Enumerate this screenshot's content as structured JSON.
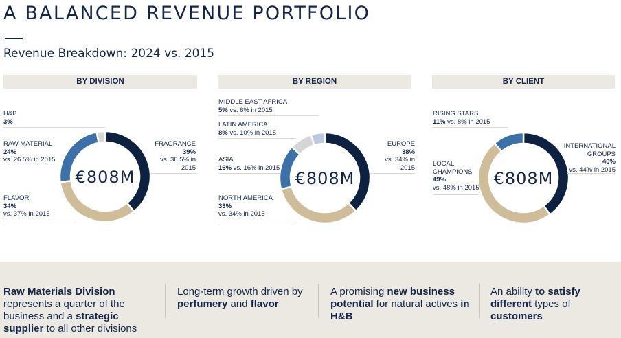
{
  "page": {
    "title": "A BALANCED REVENUE PORTFOLIO",
    "subtitle": "Revenue Breakdown: 2024 vs. 2015"
  },
  "colors": {
    "navy": "#0d2240",
    "steel_blue": "#3b70a8",
    "tan": "#cfbc98",
    "light_gray": "#d6d6d6",
    "pale_blue": "#b9c9e0",
    "band_bg": "#ece9e3"
  },
  "chart_data": [
    {
      "type": "pie",
      "title": "BY DIVISION",
      "center_label": "€808M",
      "slices": [
        {
          "name": "FRAGRANCE",
          "value": 39,
          "value_label": "39%",
          "note": "vs. 36.5% in 2015",
          "color": "#0d2240"
        },
        {
          "name": "FLAVOR",
          "value": 34,
          "value_label": "34%",
          "note": "vs. 37% in 2015",
          "color": "#cfbc98"
        },
        {
          "name": "RAW  MATERIAL",
          "value": 24,
          "value_label": "24%",
          "note": "vs. 26.5% in 2015",
          "color": "#3b70a8"
        },
        {
          "name": "H&B",
          "value": 3,
          "value_label": "3%",
          "note": "",
          "color": "#d6d6d6"
        }
      ]
    },
    {
      "type": "pie",
      "title": "BY REGION",
      "center_label": "€808M",
      "slices": [
        {
          "name": "EUROPE",
          "value": 38,
          "value_label": "38%",
          "note": "vs. 34% in 2015",
          "color": "#0d2240"
        },
        {
          "name": "NORTH AMERICA",
          "value": 33,
          "value_label": "33%",
          "note": "vs. 34% in 2015",
          "color": "#cfbc98"
        },
        {
          "name": "ASIA",
          "value": 16,
          "value_label": "16%",
          "note": "vs. 16% in 2015",
          "color": "#3b70a8"
        },
        {
          "name": "LATIN AMERICA",
          "value": 8,
          "value_label": "8%",
          "note": "vs. 10% in 2015",
          "color": "#d6d6d6"
        },
        {
          "name": "MIDDLE EAST AFRICA",
          "value": 5,
          "value_label": "5%",
          "note": "vs. 6% in 2015",
          "color": "#b9c9e0"
        }
      ]
    },
    {
      "type": "pie",
      "title": "BY CLIENT",
      "center_label": "€808M",
      "slices": [
        {
          "name": "INTERNATIONAL GROUPS",
          "value": 40,
          "value_label": "40%",
          "note": "vs. 44% in 2015",
          "color": "#0d2240"
        },
        {
          "name": "LOCAL CHAMPIONS",
          "value": 49,
          "value_label": "49%",
          "note": "vs. 48% in 2015",
          "color": "#cfbc98"
        },
        {
          "name": "RISING STARS",
          "value": 11,
          "value_label": "11%",
          "note": "vs. 8% in 2015",
          "color": "#3b70a8"
        }
      ]
    }
  ],
  "bottom": {
    "notes": [
      {
        "parts": [
          {
            "text": "Raw Materials Division",
            "bold": true
          },
          {
            "text": " represents a quarter of the business and a ",
            "bold": false
          },
          {
            "text": "strategic supplier",
            "bold": true
          },
          {
            "text": " to all other divisions",
            "bold": false
          }
        ]
      },
      {
        "parts": [
          {
            "text": "Long-term growth driven by ",
            "bold": false
          },
          {
            "text": "perfumery",
            "bold": true
          },
          {
            "text": " and ",
            "bold": false
          },
          {
            "text": "flavor",
            "bold": true
          }
        ]
      },
      {
        "parts": [
          {
            "text": "A promising ",
            "bold": false
          },
          {
            "text": "new business potential",
            "bold": true
          },
          {
            "text": " for natural actives ",
            "bold": false
          },
          {
            "text": "in H&B",
            "bold": true
          }
        ]
      },
      {
        "parts": [
          {
            "text": "An ability ",
            "bold": false
          },
          {
            "text": "to satisfy different",
            "bold": true
          },
          {
            "text": " types of ",
            "bold": false
          },
          {
            "text": "customers",
            "bold": true
          }
        ]
      }
    ]
  }
}
